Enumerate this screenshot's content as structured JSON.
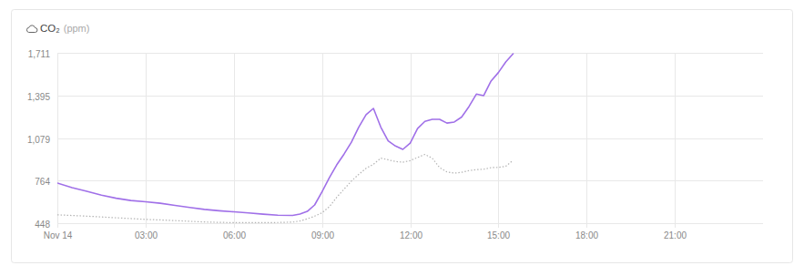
{
  "chart_data": {
    "type": "line",
    "title": "CO₂",
    "subtitle": "(ppm)",
    "x": [
      0,
      0.5,
      1,
      1.5,
      2,
      2.5,
      3,
      3.5,
      4,
      4.5,
      5,
      5.5,
      6,
      6.5,
      7,
      7.5,
      8,
      8.25,
      8.5,
      8.75,
      9,
      9.25,
      9.5,
      9.75,
      10,
      10.25,
      10.5,
      10.75,
      11,
      11.25,
      11.5,
      11.75,
      12,
      12.25,
      12.5,
      12.75,
      13,
      13.25,
      13.5,
      13.75,
      14,
      14.25,
      14.5,
      14.75,
      15,
      15.25,
      15.5
    ],
    "series": [
      {
        "color": "#a070e8",
        "line_style": "solid",
        "values": [
          745,
          712,
          685,
          656,
          633,
          616,
          607,
          596,
          580,
          564,
          550,
          540,
          532,
          524,
          515,
          507,
          505,
          515,
          535,
          583,
          680,
          785,
          880,
          960,
          1048,
          1160,
          1252,
          1299,
          1160,
          1058,
          1020,
          995,
          1042,
          1150,
          1203,
          1218,
          1218,
          1190,
          1198,
          1235,
          1313,
          1405,
          1394,
          1502,
          1565,
          1643,
          1704
        ]
      },
      {
        "color": "#b4b4b4",
        "line_style": "dotted",
        "values": [
          510,
          505,
          500,
          494,
          488,
          482,
          476,
          472,
          467,
          462,
          457,
          454,
          452,
          452,
          452,
          453,
          456,
          464,
          480,
          500,
          525,
          570,
          640,
          700,
          760,
          810,
          855,
          885,
          930,
          918,
          905,
          900,
          912,
          935,
          958,
          930,
          860,
          828,
          819,
          825,
          838,
          845,
          848,
          860,
          862,
          870,
          914
        ]
      }
    ],
    "xlim": [
      0,
      24
    ],
    "xticks": [
      {
        "value": 0,
        "label": "Nov 14"
      },
      {
        "value": 3,
        "label": "03:00"
      },
      {
        "value": 6,
        "label": "06:00"
      },
      {
        "value": 9,
        "label": "09:00"
      },
      {
        "value": 12,
        "label": "12:00"
      },
      {
        "value": 15,
        "label": "15:00"
      },
      {
        "value": 18,
        "label": "18:00"
      },
      {
        "value": 21,
        "label": "21:00"
      }
    ],
    "ylim": [
      448,
      1711
    ],
    "yticks": [
      448,
      764,
      {
        "value": 1079,
        "label": "1,079"
      },
      {
        "value": 1395,
        "label": "1,395"
      },
      {
        "value": 1711,
        "label": "1,711"
      }
    ],
    "grid": true
  }
}
